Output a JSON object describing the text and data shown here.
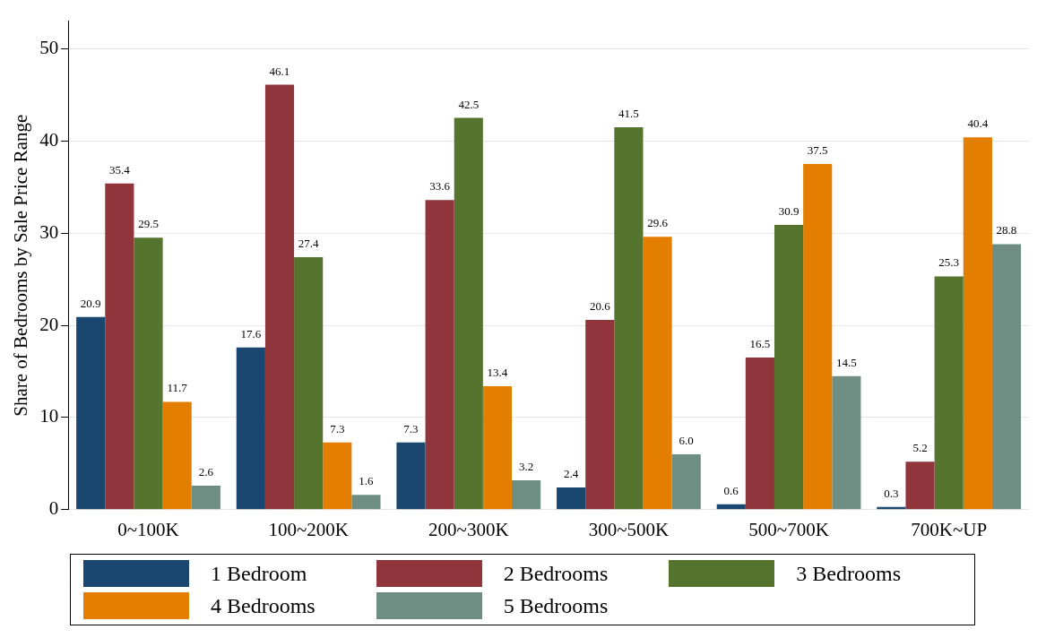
{
  "chart_data": {
    "type": "bar",
    "ylabel": "Share of Bedrooms by Sale Price Range",
    "categories": [
      "0~100K",
      "100~200K",
      "200~300K",
      "300~500K",
      "500~700K",
      "700K~UP"
    ],
    "series": [
      {
        "name": "1 Bedroom",
        "color": "#1a476f",
        "values": [
          20.9,
          17.6,
          7.3,
          2.4,
          0.6,
          0.3
        ]
      },
      {
        "name": "2 Bedrooms",
        "color": "#90353b",
        "values": [
          35.4,
          46.1,
          33.6,
          20.6,
          16.5,
          5.2
        ]
      },
      {
        "name": "3 Bedrooms",
        "color": "#55752f",
        "values": [
          29.5,
          27.4,
          42.5,
          41.5,
          30.9,
          25.3
        ]
      },
      {
        "name": "4 Bedrooms",
        "color": "#e37e00",
        "values": [
          11.7,
          7.3,
          13.4,
          29.6,
          37.5,
          40.4
        ]
      },
      {
        "name": "5 Bedrooms",
        "color": "#6e8e84",
        "values": [
          2.6,
          1.6,
          3.2,
          6.0,
          14.5,
          28.8
        ],
        "value_labels": [
          "2.6",
          "1.6",
          "3.2",
          "6.0",
          "14.5",
          "28.8"
        ]
      }
    ],
    "ylim": [
      0,
      53
    ],
    "yticks": [
      0,
      10,
      20,
      30,
      40,
      50
    ],
    "grid": "y",
    "legend": "bottom",
    "data_labels": true
  }
}
